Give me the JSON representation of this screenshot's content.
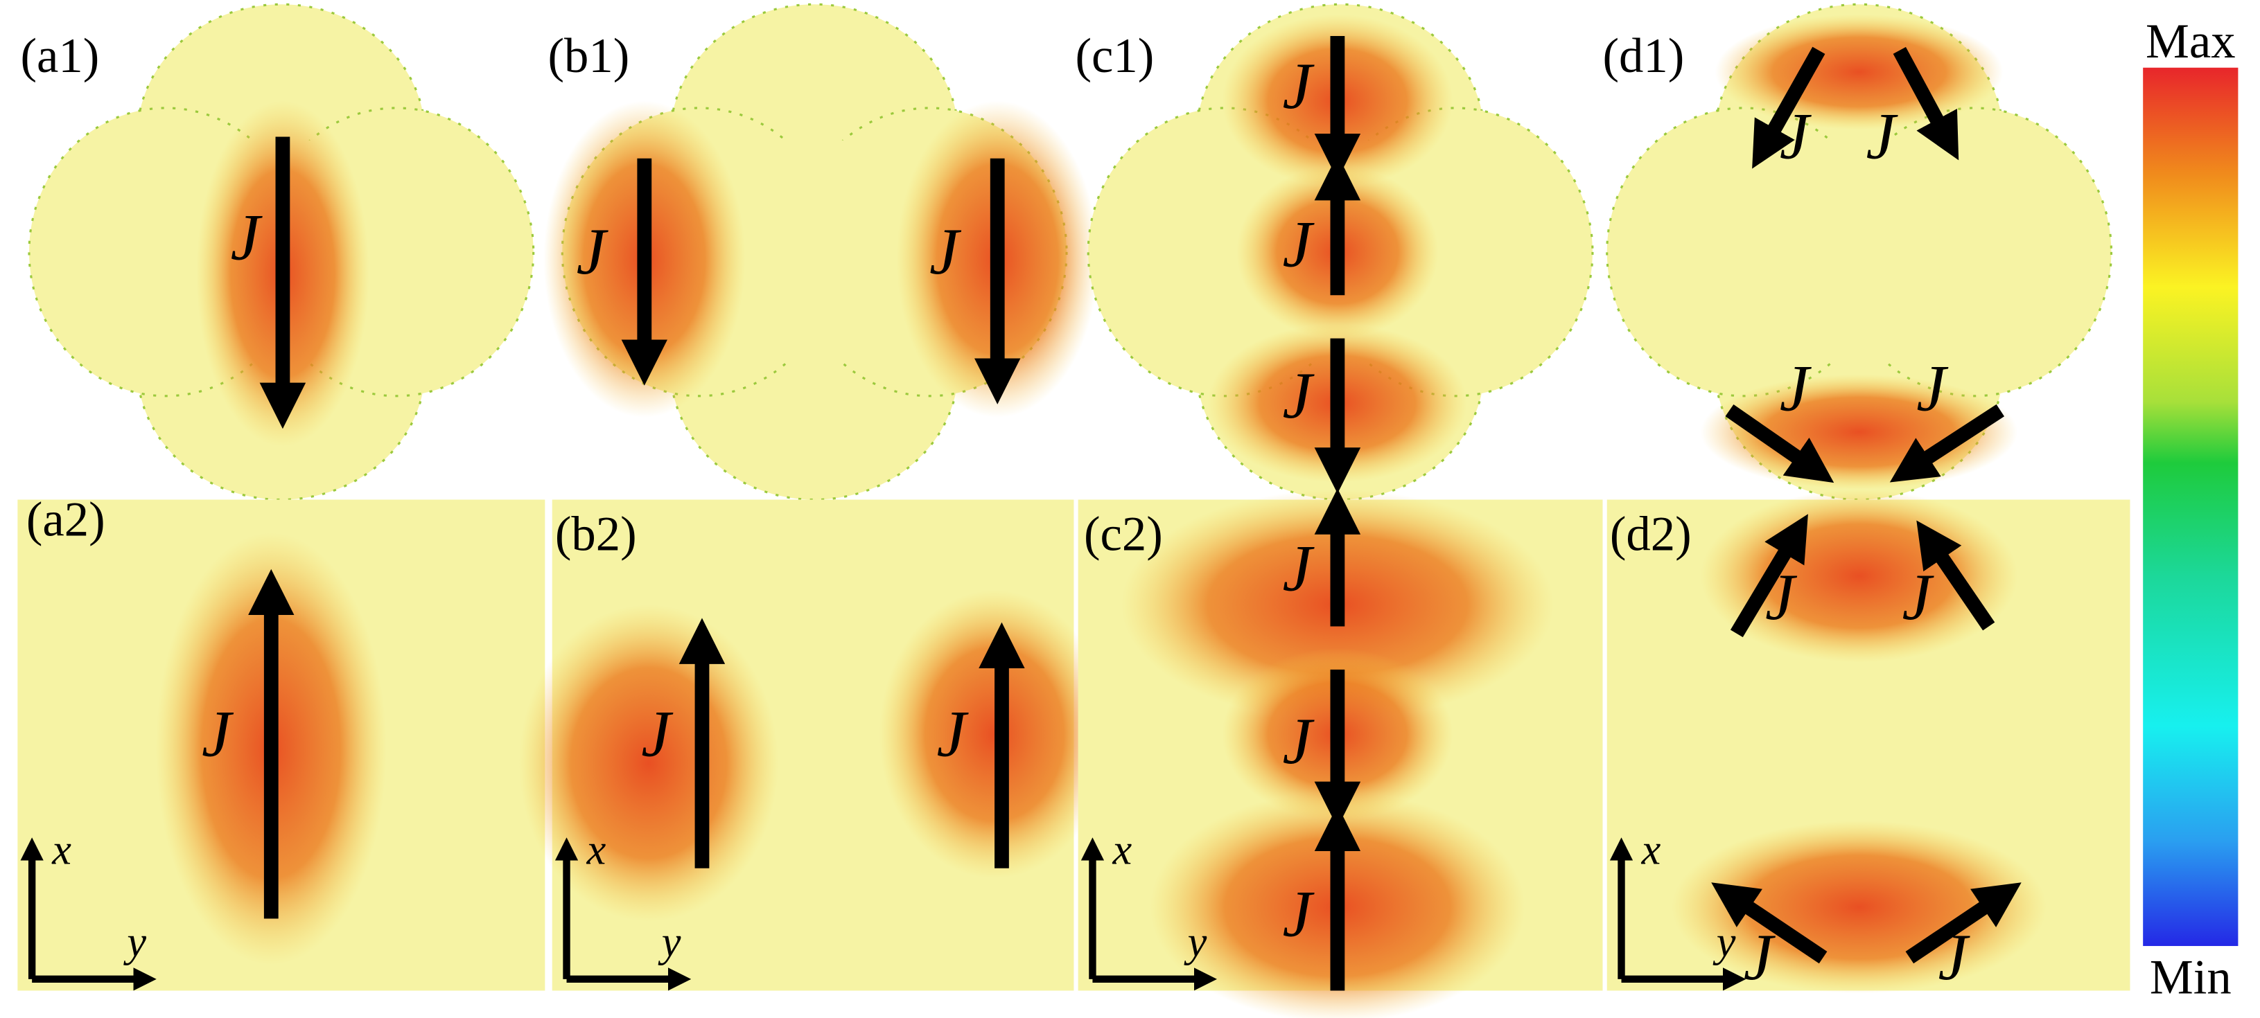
{
  "panels": [
    {
      "label": "(a1)",
      "arrow_labels": [
        "J"
      ]
    },
    {
      "label": "(b1)",
      "arrow_labels": [
        "J",
        "J"
      ]
    },
    {
      "label": "(c1)",
      "arrow_labels": [
        "J",
        "J",
        "J"
      ]
    },
    {
      "label": "(d1)",
      "arrow_labels": [
        "J",
        "J",
        "J",
        "J"
      ]
    },
    {
      "label": "(a2)",
      "arrow_labels": [
        "J"
      ],
      "axis_labels": [
        "x",
        "y"
      ]
    },
    {
      "label": "(b2)",
      "arrow_labels": [
        "J",
        "J"
      ],
      "axis_labels": [
        "x",
        "y"
      ]
    },
    {
      "label": "(c2)",
      "arrow_labels": [
        "J",
        "J",
        "J"
      ],
      "axis_labels": [
        "x",
        "y"
      ]
    },
    {
      "label": "(d2)",
      "arrow_labels": [
        "J",
        "J",
        "J",
        "J"
      ],
      "axis_labels": [
        "x",
        "y"
      ]
    }
  ],
  "colorbar": {
    "max": "Max",
    "min": "Min"
  }
}
